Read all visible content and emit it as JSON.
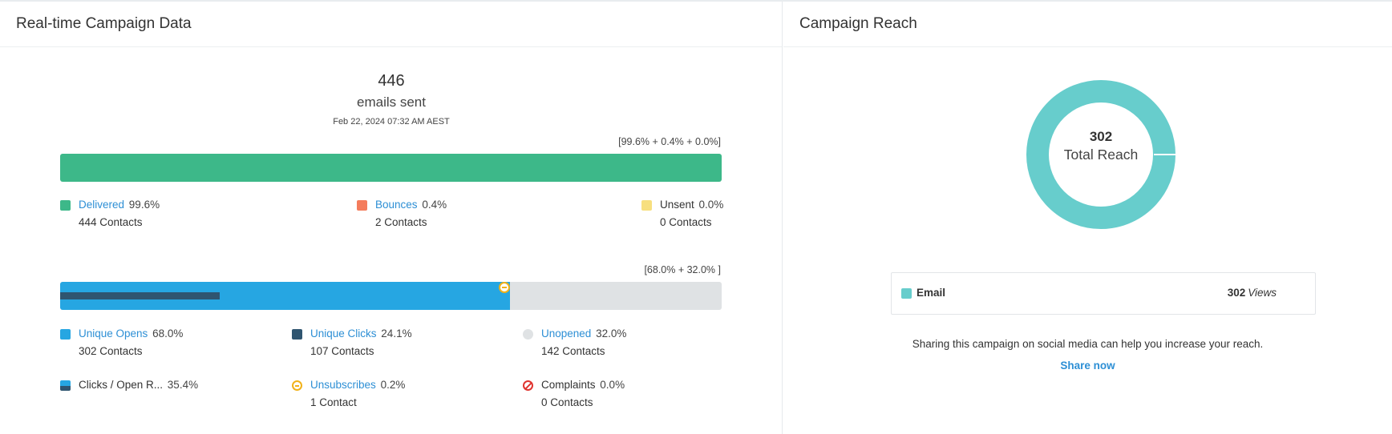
{
  "left_panel": {
    "title": "Real-time Campaign Data",
    "summary": {
      "count": "446",
      "label": "emails sent",
      "date": "Feb 22, 2024 07:32 AM AEST"
    },
    "delivery": {
      "bracket": "[99.6% + 0.4% + 0.0%]",
      "delivered_pct": 99.6,
      "bounces_pct": 0.4,
      "unsent_pct": 0.0,
      "legend": [
        {
          "label": "Delivered",
          "pct": "99.6%",
          "contacts": "444 Contacts",
          "color": "#3db889",
          "link": true
        },
        {
          "label": "Bounces",
          "pct": "0.4%",
          "contacts": "2 Contacts",
          "color": "#f47c5c",
          "link": true
        },
        {
          "label": "Unsent",
          "pct": "0.0%",
          "contacts": "0 Contacts",
          "color": "#f7df7f",
          "link": false
        }
      ]
    },
    "engagement": {
      "bracket": "[68.0% + 32.0% ]",
      "opens_pct": 68.0,
      "clicks_pct": 24.1,
      "unopened_pct": 32.0,
      "legend": [
        {
          "label": "Unique Opens",
          "pct": "68.0%",
          "contacts": "302 Contacts",
          "color": "#26a6e2",
          "link": true,
          "icon": "square"
        },
        {
          "label": "Unique Clicks",
          "pct": "24.1%",
          "contacts": "107 Contacts",
          "color": "#2f5570",
          "link": true,
          "icon": "square"
        },
        {
          "label": "Unopened",
          "pct": "32.0%",
          "contacts": "142 Contacts",
          "color": "#dfe2e4",
          "link": true,
          "icon": "circle"
        },
        {
          "label": "Clicks / Open R...",
          "pct": "35.4%",
          "contacts": "",
          "link": false,
          "icon": "ctor"
        },
        {
          "label": "Unsubscribes",
          "pct": "0.2%",
          "contacts": "1 Contact",
          "color": "#f1b21a",
          "link": true,
          "icon": "unsubscribe"
        },
        {
          "label": "Complaints",
          "pct": "0.0%",
          "contacts": "0 Contacts",
          "color": "#e0342f",
          "link": false,
          "icon": "complaint"
        }
      ]
    }
  },
  "right_panel": {
    "title": "Campaign Reach",
    "donut": {
      "value": "302",
      "label": "Total Reach",
      "color": "#67cdcc"
    },
    "reach_rows": [
      {
        "channel": "Email",
        "views": "302",
        "views_label": "Views",
        "color": "#67cdcc"
      }
    ],
    "share_text": "Sharing this campaign on social media can help you increase your reach.",
    "share_link": "Share now"
  }
}
